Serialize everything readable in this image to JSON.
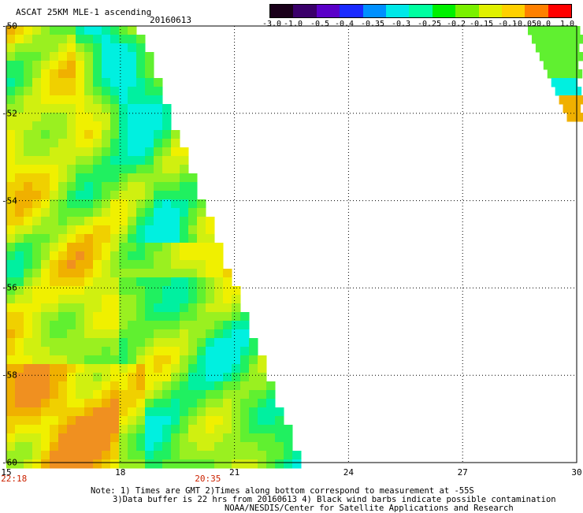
{
  "header": {
    "title": "ASCAT 25KM MLE-1 ascending",
    "date": "20160613"
  },
  "colorbar": {
    "labels": [
      "-3.0",
      "-1.0",
      "-0.5",
      "-0.4",
      "-0.35",
      "-0.3",
      "-0.25",
      "-0.2",
      "-0.15",
      "-0.1",
      "-0.05",
      "0.0",
      "1.0"
    ],
    "colors": [
      "#1a001a",
      "#3a006a",
      "#5a00c8",
      "#1a2aff",
      "#0090ff",
      "#00e8e8",
      "#00ffa0",
      "#00f000",
      "#7af000",
      "#e0f000",
      "#ffd000",
      "#ff8000",
      "#ff0000"
    ]
  },
  "map": {
    "lon_range": [
      15,
      30
    ],
    "lat_range": [
      -60,
      -50
    ],
    "x_ticks": [
      "15",
      "18",
      "21",
      "24",
      "27",
      "30"
    ],
    "y_ticks": [
      "-50",
      "-52",
      "-54",
      "-56",
      "-58",
      "-60"
    ],
    "time_labels": [
      {
        "text": "22:18",
        "lon": 15.2
      },
      {
        "text": "20:35",
        "lon": 20.3
      }
    ]
  },
  "notes": {
    "line1": "Note: 1) Times are GMT 2)Times along bottom correspond to measurement at -55S",
    "line2": "3)Data buffer is 22 hrs from 20160613 4) Black wind barbs indicate possible contamination",
    "line3": "NOAA/NESDIS/Center for Satellite Applications and Research"
  }
}
